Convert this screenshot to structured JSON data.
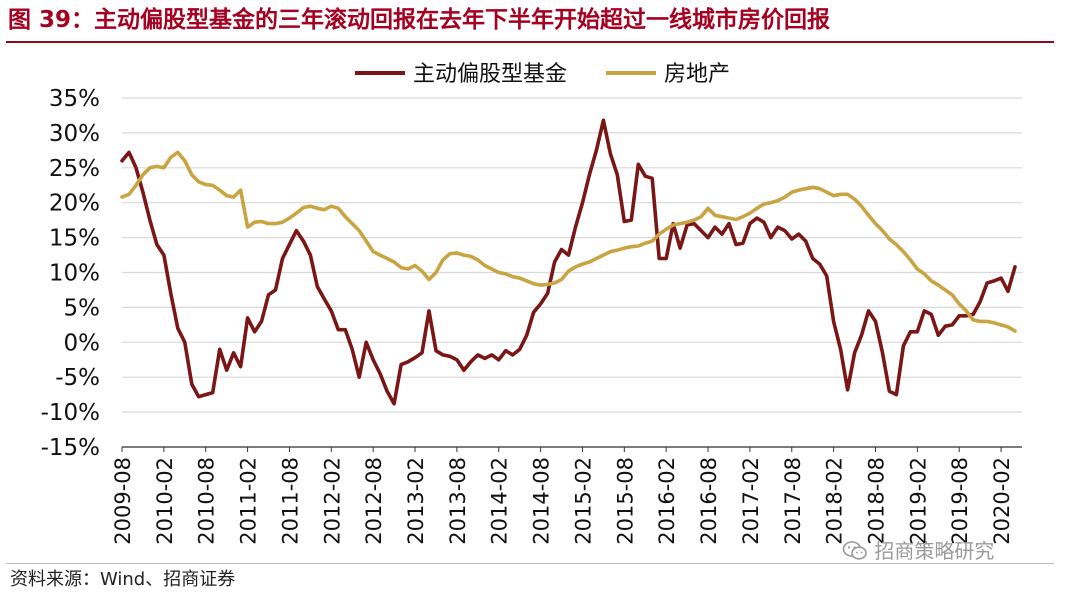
{
  "title": "图 39：主动偏股型基金的三年滚动回报在去年下半年开始超过一线城市房价回报",
  "source": "资料来源：Wind、招商证券",
  "watermark": "招商策略研究",
  "colors": {
    "fund": "#7b1616",
    "property": "#c9a442",
    "title": "#a50021",
    "grid": "#d9d9d9"
  },
  "chart_data": {
    "type": "line",
    "ylim": [
      -15,
      35
    ],
    "yticks": [
      35,
      30,
      25,
      20,
      15,
      10,
      5,
      0,
      -5,
      -10,
      -15
    ],
    "y_tick_format": "percent",
    "grid": true,
    "legend_position": "top-center",
    "x_tick_labels": [
      "2009-08",
      "2010-02",
      "2010-08",
      "2011-02",
      "2011-08",
      "2012-02",
      "2012-08",
      "2013-02",
      "2013-08",
      "2014-02",
      "2014-08",
      "2015-02",
      "2015-08",
      "2016-02",
      "2016-08",
      "2017-02",
      "2017-08",
      "2018-02",
      "2018-08",
      "2019-02",
      "2019-08",
      "2020-02"
    ],
    "x_start": "2009-08",
    "x_end": "2020-05",
    "series": [
      {
        "name": "主动偏股型基金",
        "color": "#7b1616",
        "points": [
          [
            "2009-08",
            26
          ],
          [
            "2009-09",
            27.2
          ],
          [
            "2009-10",
            25
          ],
          [
            "2009-11",
            21.5
          ],
          [
            "2009-12",
            17.5
          ],
          [
            "2010-01",
            14
          ],
          [
            "2010-02",
            12.5
          ],
          [
            "2010-03",
            7
          ],
          [
            "2010-04",
            2
          ],
          [
            "2010-05",
            0
          ],
          [
            "2010-06",
            -6
          ],
          [
            "2010-07",
            -7.8
          ],
          [
            "2010-08",
            -7.5
          ],
          [
            "2010-09",
            -7.2
          ],
          [
            "2010-10",
            -1
          ],
          [
            "2010-11",
            -4
          ],
          [
            "2010-12",
            -1.5
          ],
          [
            "2011-01",
            -3.5
          ],
          [
            "2011-02",
            3.5
          ],
          [
            "2011-03",
            1.5
          ],
          [
            "2011-04",
            3
          ],
          [
            "2011-05",
            6.8
          ],
          [
            "2011-06",
            7.5
          ],
          [
            "2011-07",
            12
          ],
          [
            "2011-08",
            14
          ],
          [
            "2011-09",
            16
          ],
          [
            "2011-10",
            14.5
          ],
          [
            "2011-11",
            12.5
          ],
          [
            "2011-12",
            8
          ],
          [
            "2012-01",
            6.2
          ],
          [
            "2012-02",
            4.5
          ],
          [
            "2012-03",
            1.8
          ],
          [
            "2012-04",
            1.8
          ],
          [
            "2012-05",
            -1
          ],
          [
            "2012-06",
            -5
          ],
          [
            "2012-07",
            0
          ],
          [
            "2012-08",
            -2.5
          ],
          [
            "2012-09",
            -4.5
          ],
          [
            "2012-10",
            -7
          ],
          [
            "2012-11",
            -8.8
          ],
          [
            "2012-12",
            -3.2
          ],
          [
            "2013-01",
            -2.8
          ],
          [
            "2013-02",
            -2.2
          ],
          [
            "2013-03",
            -1.5
          ],
          [
            "2013-04",
            4.5
          ],
          [
            "2013-05",
            -1.2
          ],
          [
            "2013-06",
            -1.8
          ],
          [
            "2013-07",
            -2
          ],
          [
            "2013-08",
            -2.5
          ],
          [
            "2013-09",
            -4
          ],
          [
            "2013-10",
            -2.8
          ],
          [
            "2013-11",
            -1.8
          ],
          [
            "2013-12",
            -2.3
          ],
          [
            "2014-01",
            -1.8
          ],
          [
            "2014-02",
            -2.5
          ],
          [
            "2014-03",
            -1.2
          ],
          [
            "2014-04",
            -1.8
          ],
          [
            "2014-05",
            -1
          ],
          [
            "2014-06",
            1
          ],
          [
            "2014-07",
            4.3
          ],
          [
            "2014-08",
            5.5
          ],
          [
            "2014-09",
            7
          ],
          [
            "2014-10",
            11.5
          ],
          [
            "2014-11",
            13.3
          ],
          [
            "2014-12",
            12.5
          ],
          [
            "2015-01",
            16.5
          ],
          [
            "2015-02",
            20
          ],
          [
            "2015-03",
            24
          ],
          [
            "2015-04",
            27.5
          ],
          [
            "2015-05",
            31.8
          ],
          [
            "2015-06",
            27
          ],
          [
            "2015-07",
            24
          ],
          [
            "2015-08",
            17.3
          ],
          [
            "2015-09",
            17.5
          ],
          [
            "2015-10",
            25.5
          ],
          [
            "2015-11",
            23.8
          ],
          [
            "2015-12",
            23.5
          ],
          [
            "2016-01",
            12
          ],
          [
            "2016-02",
            12
          ],
          [
            "2016-03",
            17
          ],
          [
            "2016-04",
            13.5
          ],
          [
            "2016-05",
            16.8
          ],
          [
            "2016-06",
            17
          ],
          [
            "2016-07",
            16
          ],
          [
            "2016-08",
            15
          ],
          [
            "2016-09",
            16.5
          ],
          [
            "2016-10",
            15.5
          ],
          [
            "2016-11",
            17
          ],
          [
            "2016-12",
            14
          ],
          [
            "2017-01",
            14.2
          ],
          [
            "2017-02",
            17
          ],
          [
            "2017-03",
            17.8
          ],
          [
            "2017-04",
            17.2
          ],
          [
            "2017-05",
            15
          ],
          [
            "2017-06",
            16.5
          ],
          [
            "2017-07",
            16
          ],
          [
            "2017-08",
            14.8
          ],
          [
            "2017-09",
            15.5
          ],
          [
            "2017-10",
            14.5
          ],
          [
            "2017-11",
            12
          ],
          [
            "2017-12",
            11.2
          ],
          [
            "2018-01",
            9.5
          ],
          [
            "2018-02",
            3
          ],
          [
            "2018-03",
            -1
          ],
          [
            "2018-04",
            -6.8
          ],
          [
            "2018-05",
            -1.5
          ],
          [
            "2018-06",
            1
          ],
          [
            "2018-07",
            4.5
          ],
          [
            "2018-08",
            3
          ],
          [
            "2018-09",
            -1.5
          ],
          [
            "2018-10",
            -7
          ],
          [
            "2018-11",
            -7.5
          ],
          [
            "2018-12",
            -0.5
          ],
          [
            "2019-01",
            1.5
          ],
          [
            "2019-02",
            1.5
          ],
          [
            "2019-03",
            4.5
          ],
          [
            "2019-04",
            4
          ],
          [
            "2019-05",
            1
          ],
          [
            "2019-06",
            2.3
          ],
          [
            "2019-07",
            2.5
          ],
          [
            "2019-08",
            3.8
          ],
          [
            "2019-09",
            3.8
          ],
          [
            "2019-10",
            4
          ],
          [
            "2019-11",
            5.8
          ],
          [
            "2019-12",
            8.5
          ],
          [
            "2020-01",
            8.8
          ],
          [
            "2020-02",
            9.2
          ],
          [
            "2020-03",
            7.3
          ],
          [
            "2020-04",
            10.8
          ]
        ]
      },
      {
        "name": "房地产",
        "color": "#c9a442",
        "points": [
          [
            "2009-08",
            20.8
          ],
          [
            "2009-09",
            21.2
          ],
          [
            "2009-10",
            22.5
          ],
          [
            "2009-11",
            24
          ],
          [
            "2009-12",
            25
          ],
          [
            "2010-01",
            25.2
          ],
          [
            "2010-02",
            25
          ],
          [
            "2010-03",
            26.5
          ],
          [
            "2010-04",
            27.2
          ],
          [
            "2010-05",
            26
          ],
          [
            "2010-06",
            24
          ],
          [
            "2010-07",
            23
          ],
          [
            "2010-08",
            22.6
          ],
          [
            "2010-09",
            22.5
          ],
          [
            "2010-10",
            21.8
          ],
          [
            "2010-11",
            21
          ],
          [
            "2010-12",
            20.8
          ],
          [
            "2011-01",
            21.8
          ],
          [
            "2011-02",
            16.5
          ],
          [
            "2011-03",
            17.2
          ],
          [
            "2011-04",
            17.3
          ],
          [
            "2011-05",
            17
          ],
          [
            "2011-06",
            17
          ],
          [
            "2011-07",
            17.2
          ],
          [
            "2011-08",
            17.8
          ],
          [
            "2011-09",
            18.5
          ],
          [
            "2011-10",
            19.3
          ],
          [
            "2011-11",
            19.5
          ],
          [
            "2011-12",
            19.2
          ],
          [
            "2012-01",
            19
          ],
          [
            "2012-02",
            19.5
          ],
          [
            "2012-03",
            19.2
          ],
          [
            "2012-04",
            18
          ],
          [
            "2012-05",
            17
          ],
          [
            "2012-06",
            16
          ],
          [
            "2012-07",
            14.5
          ],
          [
            "2012-08",
            13
          ],
          [
            "2012-09",
            12.5
          ],
          [
            "2012-10",
            12
          ],
          [
            "2012-11",
            11.5
          ],
          [
            "2012-12",
            10.7
          ],
          [
            "2013-01",
            10.5
          ],
          [
            "2013-02",
            11
          ],
          [
            "2013-03",
            10.2
          ],
          [
            "2013-04",
            9
          ],
          [
            "2013-05",
            10
          ],
          [
            "2013-06",
            11.8
          ],
          [
            "2013-07",
            12.7
          ],
          [
            "2013-08",
            12.8
          ],
          [
            "2013-09",
            12.5
          ],
          [
            "2013-10",
            12.3
          ],
          [
            "2013-11",
            11.8
          ],
          [
            "2013-12",
            11
          ],
          [
            "2014-01",
            10.5
          ],
          [
            "2014-02",
            10
          ],
          [
            "2014-03",
            9.8
          ],
          [
            "2014-04",
            9.4
          ],
          [
            "2014-05",
            9.2
          ],
          [
            "2014-06",
            8.8
          ],
          [
            "2014-07",
            8.4
          ],
          [
            "2014-08",
            8.2
          ],
          [
            "2014-09",
            8.3
          ],
          [
            "2014-10",
            8.5
          ],
          [
            "2014-11",
            9
          ],
          [
            "2014-12",
            10.2
          ],
          [
            "2015-01",
            10.8
          ],
          [
            "2015-02",
            11.2
          ],
          [
            "2015-03",
            11.5
          ],
          [
            "2015-04",
            12
          ],
          [
            "2015-05",
            12.5
          ],
          [
            "2015-06",
            13
          ],
          [
            "2015-07",
            13.2
          ],
          [
            "2015-08",
            13.5
          ],
          [
            "2015-09",
            13.7
          ],
          [
            "2015-10",
            13.8
          ],
          [
            "2015-11",
            14.2
          ],
          [
            "2015-12",
            14.5
          ],
          [
            "2016-01",
            15.5
          ],
          [
            "2016-02",
            16.2
          ],
          [
            "2016-03",
            16.8
          ],
          [
            "2016-04",
            17
          ],
          [
            "2016-05",
            17.2
          ],
          [
            "2016-06",
            17.5
          ],
          [
            "2016-07",
            18
          ],
          [
            "2016-08",
            19.2
          ],
          [
            "2016-09",
            18.2
          ],
          [
            "2016-10",
            18
          ],
          [
            "2016-11",
            17.8
          ],
          [
            "2016-12",
            17.6
          ],
          [
            "2017-01",
            18
          ],
          [
            "2017-02",
            18.5
          ],
          [
            "2017-03",
            19.2
          ],
          [
            "2017-04",
            19.8
          ],
          [
            "2017-05",
            20
          ],
          [
            "2017-06",
            20.3
          ],
          [
            "2017-07",
            20.8
          ],
          [
            "2017-08",
            21.5
          ],
          [
            "2017-09",
            21.8
          ],
          [
            "2017-10",
            22
          ],
          [
            "2017-11",
            22.2
          ],
          [
            "2017-12",
            22
          ],
          [
            "2018-01",
            21.5
          ],
          [
            "2018-02",
            21
          ],
          [
            "2018-03",
            21.2
          ],
          [
            "2018-04",
            21.2
          ],
          [
            "2018-05",
            20.5
          ],
          [
            "2018-06",
            19.5
          ],
          [
            "2018-07",
            18.2
          ],
          [
            "2018-08",
            17
          ],
          [
            "2018-09",
            16
          ],
          [
            "2018-10",
            14.8
          ],
          [
            "2018-11",
            14
          ],
          [
            "2018-12",
            13
          ],
          [
            "2019-01",
            11.8
          ],
          [
            "2019-02",
            10.5
          ],
          [
            "2019-03",
            9.8
          ],
          [
            "2019-04",
            8.8
          ],
          [
            "2019-05",
            8.2
          ],
          [
            "2019-06",
            7.5
          ],
          [
            "2019-07",
            6.8
          ],
          [
            "2019-08",
            5.5
          ],
          [
            "2019-09",
            4.5
          ],
          [
            "2019-10",
            3.2
          ],
          [
            "2019-11",
            3
          ],
          [
            "2019-12",
            3
          ],
          [
            "2020-01",
            2.8
          ],
          [
            "2020-02",
            2.5
          ],
          [
            "2020-03",
            2.2
          ],
          [
            "2020-04",
            1.6
          ]
        ]
      }
    ]
  }
}
